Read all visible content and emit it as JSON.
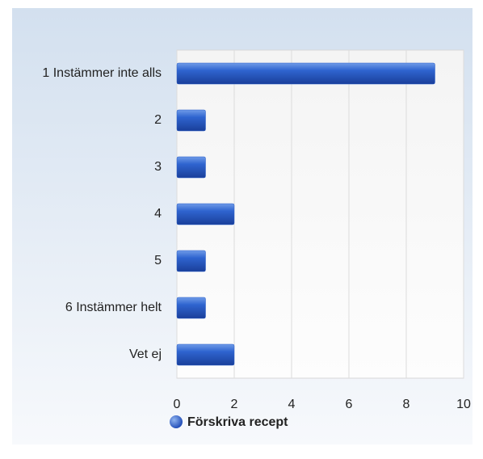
{
  "chart_data": {
    "type": "bar",
    "orientation": "horizontal",
    "categories": [
      "1 Instämmer inte alls",
      "2",
      "3",
      "4",
      "5",
      "6 Instämmer helt",
      "Vet ej"
    ],
    "series": [
      {
        "name": "Förskriva recept",
        "color": "#2a5fc9",
        "values": [
          9,
          1,
          1,
          2,
          1,
          1,
          2
        ]
      }
    ],
    "xlim": [
      0,
      10
    ],
    "xticks": [
      0,
      2,
      4,
      6,
      8,
      10
    ],
    "grid": true,
    "legend": "bottom"
  }
}
